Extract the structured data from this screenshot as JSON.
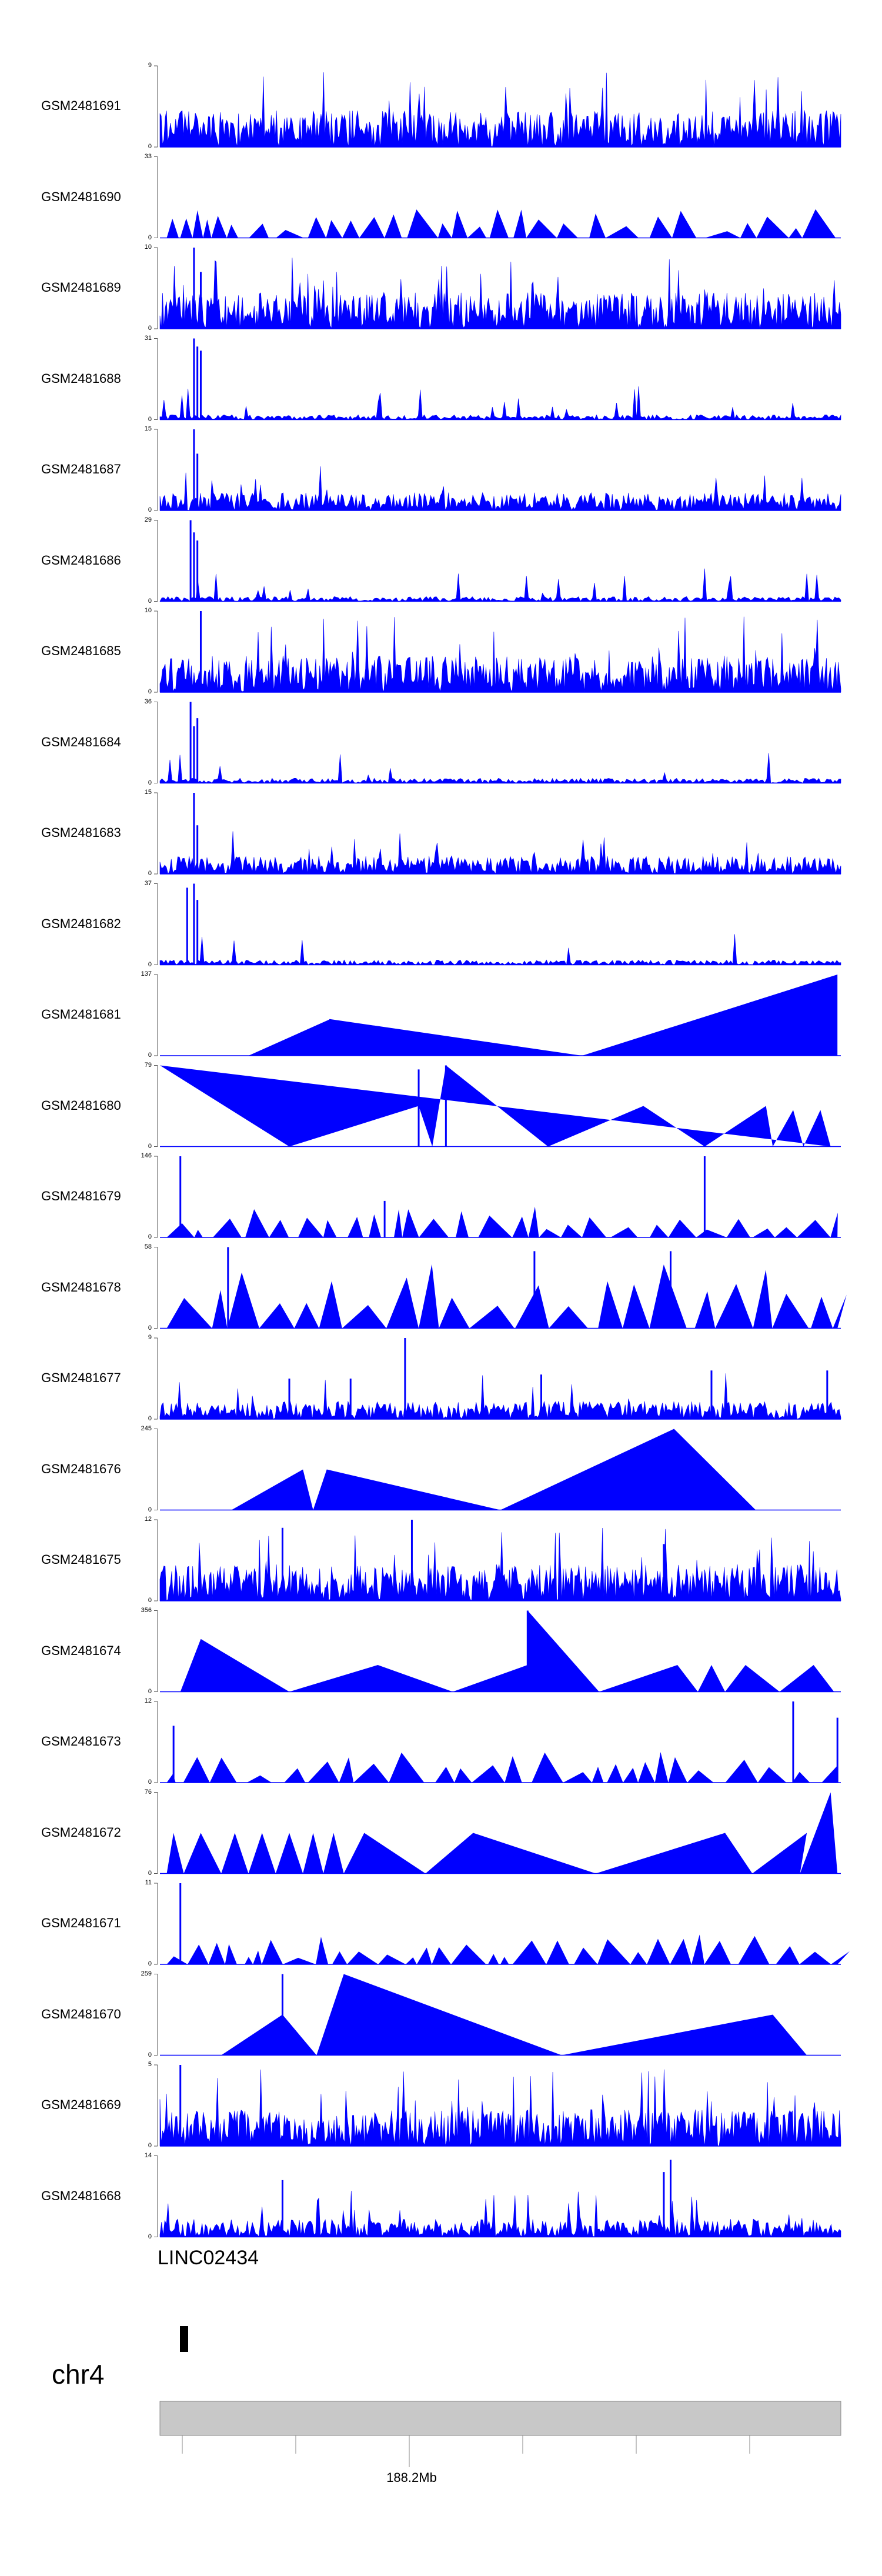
{
  "chart_data": {
    "type": "area",
    "title": "",
    "color": "#0000ff",
    "tracks": [
      {
        "name": "GSM2481691",
        "ymax": 9,
        "style": "dense",
        "seed": 11,
        "peaks": []
      },
      {
        "name": "GSM2481690",
        "ymax": 33,
        "style": "triangles",
        "seed": 12,
        "peaks": []
      },
      {
        "name": "GSM2481689",
        "ymax": 10,
        "style": "dense",
        "seed": 13,
        "peaks": [
          [
            0.05,
            1.0
          ],
          [
            0.06,
            0.7
          ]
        ]
      },
      {
        "name": "GSM2481688",
        "ymax": 31,
        "style": "sparse",
        "seed": 14,
        "peaks": [
          [
            0.05,
            1.0
          ],
          [
            0.06,
            0.85
          ],
          [
            0.055,
            0.9
          ]
        ]
      },
      {
        "name": "GSM2481687",
        "ymax": 15,
        "style": "medium",
        "seed": 15,
        "peaks": [
          [
            0.05,
            1.0
          ],
          [
            0.055,
            0.7
          ]
        ]
      },
      {
        "name": "GSM2481686",
        "ymax": 29,
        "style": "sparse",
        "seed": 16,
        "peaks": [
          [
            0.045,
            1.0
          ],
          [
            0.055,
            0.75
          ],
          [
            0.05,
            0.85
          ]
        ]
      },
      {
        "name": "GSM2481685",
        "ymax": 10,
        "style": "dense",
        "seed": 17,
        "peaks": [
          [
            0.06,
            1.0
          ]
        ]
      },
      {
        "name": "GSM2481684",
        "ymax": 36,
        "style": "sparse",
        "seed": 18,
        "peaks": [
          [
            0.045,
            1.0
          ],
          [
            0.055,
            0.8
          ],
          [
            0.05,
            0.7
          ]
        ]
      },
      {
        "name": "GSM2481683",
        "ymax": 15,
        "style": "medium",
        "seed": 19,
        "peaks": [
          [
            0.05,
            1.0
          ],
          [
            0.055,
            0.6
          ]
        ]
      },
      {
        "name": "GSM2481682",
        "ymax": 37,
        "style": "sparse",
        "seed": 20,
        "peaks": [
          [
            0.04,
            0.95
          ],
          [
            0.05,
            1.0
          ],
          [
            0.055,
            0.8
          ]
        ]
      },
      {
        "name": "GSM2481681",
        "ymax": 137,
        "style": "polygon",
        "seed": 21,
        "peaks": [
          [
            0.25,
            0.45
          ]
        ],
        "poly": [
          [
            0.13,
            0
          ],
          [
            0.25,
            0.45
          ],
          [
            0.62,
            0
          ],
          [
            0.995,
            1.0
          ],
          [
            0.995,
            0
          ]
        ]
      },
      {
        "name": "GSM2481680",
        "ymax": 79,
        "style": "polygon",
        "seed": 22,
        "peaks": [
          [
            0.38,
            0.95
          ],
          [
            0.42,
            1.0
          ]
        ],
        "poly": [
          [
            0.0,
            1.0
          ],
          [
            0.19,
            0
          ],
          [
            0.38,
            0.5
          ],
          [
            0.4,
            0
          ],
          [
            0.42,
            1.0
          ],
          [
            0.57,
            0
          ],
          [
            0.71,
            0.5
          ],
          [
            0.8,
            0
          ],
          [
            0.89,
            0.5
          ],
          [
            0.9,
            0
          ],
          [
            0.93,
            0.45
          ],
          [
            0.945,
            0
          ],
          [
            0.97,
            0.45
          ],
          [
            0.985,
            0
          ]
        ]
      },
      {
        "name": "GSM2481679",
        "ymax": 146,
        "style": "triangles",
        "seed": 23,
        "peaks": [
          [
            0.03,
            1.0
          ],
          [
            0.8,
            1.0
          ],
          [
            0.33,
            0.45
          ]
        ]
      },
      {
        "name": "GSM2481678",
        "ymax": 58,
        "style": "bigtri",
        "seed": 24,
        "peaks": [
          [
            0.1,
            1.0
          ],
          [
            0.55,
            0.95
          ],
          [
            0.75,
            0.95
          ]
        ]
      },
      {
        "name": "GSM2481677",
        "ymax": 9,
        "style": "medium",
        "seed": 25,
        "peaks": [
          [
            0.36,
            1.0
          ],
          [
            0.19,
            0.5
          ],
          [
            0.28,
            0.5
          ],
          [
            0.56,
            0.55
          ],
          [
            0.81,
            0.6
          ],
          [
            0.98,
            0.6
          ]
        ]
      },
      {
        "name": "GSM2481676",
        "ymax": 245,
        "style": "polygon",
        "seed": 26,
        "peaks": [],
        "poly": [
          [
            0.105,
            0
          ],
          [
            0.21,
            0.5
          ],
          [
            0.225,
            0
          ],
          [
            0.245,
            0.5
          ],
          [
            0.5,
            0
          ],
          [
            0.755,
            1.0
          ],
          [
            0.875,
            0
          ]
        ]
      },
      {
        "name": "GSM2481675",
        "ymax": 12,
        "style": "dense",
        "seed": 27,
        "peaks": [
          [
            0.37,
            1.0
          ],
          [
            0.18,
            0.9
          ],
          [
            0.74,
            0.7
          ]
        ]
      },
      {
        "name": "GSM2481674",
        "ymax": 356,
        "style": "polygon",
        "seed": 28,
        "peaks": [
          [
            0.54,
            1.0
          ]
        ],
        "poly": [
          [
            0.03,
            0
          ],
          [
            0.06,
            0.65
          ],
          [
            0.19,
            0
          ],
          [
            0.32,
            0.33
          ],
          [
            0.43,
            0
          ],
          [
            0.54,
            0.33
          ],
          [
            0.54,
            1.0
          ],
          [
            0.645,
            0
          ],
          [
            0.76,
            0.33
          ],
          [
            0.79,
            0
          ],
          [
            0.81,
            0.33
          ],
          [
            0.83,
            0
          ],
          [
            0.86,
            0.33
          ],
          [
            0.91,
            0
          ],
          [
            0.96,
            0.33
          ],
          [
            0.99,
            0
          ]
        ]
      },
      {
        "name": "GSM2481673",
        "ymax": 12,
        "style": "triangles",
        "seed": 29,
        "peaks": [
          [
            0.93,
            1.0
          ],
          [
            0.02,
            0.7
          ],
          [
            0.995,
            0.8
          ]
        ]
      },
      {
        "name": "GSM2481672",
        "ymax": 76,
        "style": "polygon",
        "seed": 30,
        "peaks": [],
        "poly": [
          [
            0.01,
            0
          ],
          [
            0.02,
            0.5
          ],
          [
            0.035,
            0
          ],
          [
            0.06,
            0.5
          ],
          [
            0.09,
            0
          ],
          [
            0.11,
            0.5
          ],
          [
            0.13,
            0
          ],
          [
            0.15,
            0.5
          ],
          [
            0.17,
            0
          ],
          [
            0.19,
            0.5
          ],
          [
            0.21,
            0
          ],
          [
            0.225,
            0.5
          ],
          [
            0.24,
            0
          ],
          [
            0.255,
            0.5
          ],
          [
            0.27,
            0
          ],
          [
            0.3,
            0.5
          ],
          [
            0.39,
            0
          ],
          [
            0.46,
            0.5
          ],
          [
            0.64,
            0
          ],
          [
            0.83,
            0.5
          ],
          [
            0.87,
            0
          ],
          [
            0.95,
            0.5
          ],
          [
            0.94,
            0
          ],
          [
            0.985,
            1.0
          ],
          [
            0.995,
            0
          ]
        ]
      },
      {
        "name": "GSM2481671",
        "ymax": 11,
        "style": "triangles",
        "seed": 31,
        "peaks": [
          [
            0.03,
            1.0
          ]
        ]
      },
      {
        "name": "GSM2481670",
        "ymax": 259,
        "style": "polygon",
        "seed": 32,
        "peaks": [
          [
            0.18,
            1.0
          ]
        ],
        "poly": [
          [
            0.09,
            0
          ],
          [
            0.18,
            0.5
          ],
          [
            0.23,
            0
          ],
          [
            0.27,
            1.0
          ],
          [
            0.59,
            0
          ],
          [
            0.9,
            0.5
          ],
          [
            0.95,
            0
          ]
        ]
      },
      {
        "name": "GSM2481669",
        "ymax": 5,
        "style": "dense",
        "seed": 33,
        "peaks": [
          [
            0.03,
            1.0
          ]
        ]
      },
      {
        "name": "GSM2481668",
        "ymax": 14,
        "style": "medium",
        "seed": 34,
        "peaks": [
          [
            0.75,
            0.95
          ],
          [
            0.74,
            0.8
          ],
          [
            0.18,
            0.7
          ]
        ]
      }
    ],
    "gene_track": {
      "label": "LINC02434"
    },
    "ideogram": {
      "chromosome": "chr4",
      "tick_label": "188.2Mb"
    }
  }
}
